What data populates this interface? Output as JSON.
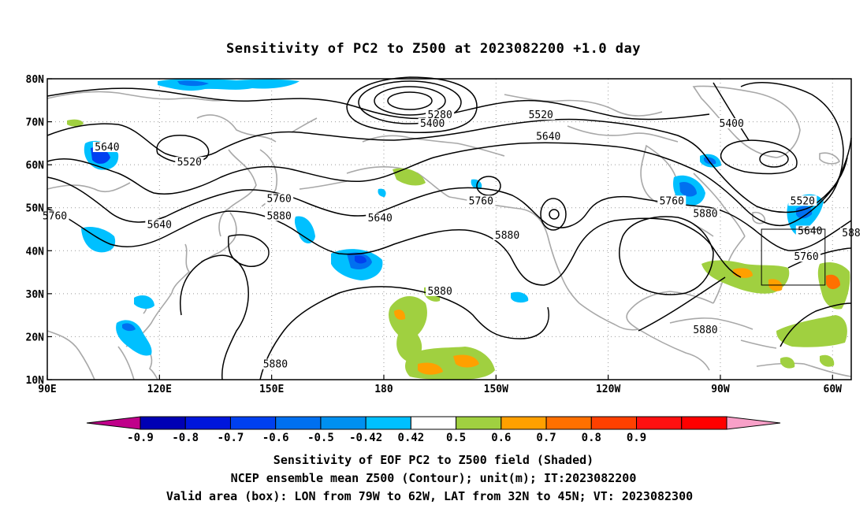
{
  "title": "Sensitivity of PC2 to Z500 at 2023082200 +1.0 day",
  "map": {
    "lon_range": [
      90,
      305
    ],
    "lat_range": [
      10,
      80
    ],
    "x_ticks": [
      {
        "lon": 90,
        "label": "90E"
      },
      {
        "lon": 120,
        "label": "120E"
      },
      {
        "lon": 150,
        "label": "150E"
      },
      {
        "lon": 180,
        "label": "180"
      },
      {
        "lon": 210,
        "label": "150W"
      },
      {
        "lon": 240,
        "label": "120W"
      },
      {
        "lon": 270,
        "label": "90W"
      },
      {
        "lon": 300,
        "label": "60W"
      }
    ],
    "y_ticks": [
      {
        "lat": 80,
        "label": "80N"
      },
      {
        "lat": 70,
        "label": "70N"
      },
      {
        "lat": 60,
        "label": "60N"
      },
      {
        "lat": 50,
        "label": "50N"
      },
      {
        "lat": 40,
        "label": "40N"
      },
      {
        "lat": 30,
        "label": "30N"
      },
      {
        "lat": 20,
        "label": "20N"
      },
      {
        "lat": 10,
        "label": "10N"
      }
    ],
    "valid_box": {
      "lon_min": 281,
      "lon_max": 298,
      "lat_min": 32,
      "lat_max": 45
    },
    "contour_labels": [
      {
        "text": "5640",
        "lon": 106,
        "lat": 63.5
      },
      {
        "text": "5520",
        "lon": 128,
        "lat": 60.0
      },
      {
        "text": "5640",
        "lon": 120,
        "lat": 45.5
      },
      {
        "text": "5760",
        "lon": 92,
        "lat": 47.5
      },
      {
        "text": "5760",
        "lon": 152,
        "lat": 51.5
      },
      {
        "text": "5880",
        "lon": 152,
        "lat": 47.5
      },
      {
        "text": "5280",
        "lon": 195,
        "lat": 71.0
      },
      {
        "text": "5400",
        "lon": 193,
        "lat": 69.0
      },
      {
        "text": "5520",
        "lon": 222,
        "lat": 71.0
      },
      {
        "text": "5640",
        "lon": 224,
        "lat": 66.0
      },
      {
        "text": "5400",
        "lon": 273,
        "lat": 69.0
      },
      {
        "text": "5640",
        "lon": 179,
        "lat": 47.0
      },
      {
        "text": "5760",
        "lon": 206,
        "lat": 51.0
      },
      {
        "text": "5880",
        "lon": 213,
        "lat": 43.0
      },
      {
        "text": "5880",
        "lon": 195,
        "lat": 30.0
      },
      {
        "text": "5760",
        "lon": 257,
        "lat": 51.0
      },
      {
        "text": "5880",
        "lon": 266,
        "lat": 48.0
      },
      {
        "text": "5520",
        "lon": 292,
        "lat": 51.0
      },
      {
        "text": "5640",
        "lon": 294,
        "lat": 44.0
      },
      {
        "text": "5760",
        "lon": 293,
        "lat": 38.0
      },
      {
        "text": "588",
        "lon": 305,
        "lat": 43.5
      },
      {
        "text": "5880",
        "lon": 266,
        "lat": 21.0
      },
      {
        "text": "5880",
        "lon": 151,
        "lat": 13.0
      }
    ]
  },
  "colorbar": {
    "colors": [
      "#c0008a",
      "#0000b4",
      "#0016dc",
      "#0040f0",
      "#0070f0",
      "#0090f0",
      "#00c0ff",
      "#ffffff",
      "#a0d040",
      "#ffa000",
      "#ff7000",
      "#ff4000",
      "#ff1010",
      "#ff0000",
      "#f8a0c8"
    ],
    "labels": [
      "-0.9",
      "-0.8",
      "-0.7",
      "-0.6",
      "-0.5",
      "-0.42",
      "0.42",
      "0.5",
      "0.6",
      "0.7",
      "0.8",
      "0.9"
    ]
  },
  "caption": {
    "line1": "Sensitivity of EOF PC2 to Z500 field (Shaded)",
    "line2": "NCEP ensemble mean Z500 (Contour); unit(m); IT:2023082200",
    "line3": "Valid area (box): LON from 79W to 62W, LAT from 32N to 45N; VT: 2023082300"
  }
}
